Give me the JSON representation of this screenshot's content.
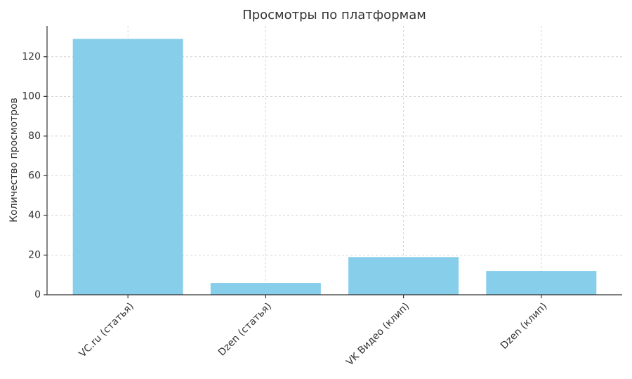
{
  "chart_data": {
    "type": "bar",
    "title": "Просмотры по платформам",
    "y_label": "Количество просмотров",
    "categories": [
      "VC.ru (статья)",
      "Dzen (статья)",
      "VK Видео (клип)",
      "Dzen (клип)"
    ],
    "values": [
      129,
      6,
      19,
      12
    ],
    "color": "#87ceeb",
    "ylim": [
      0,
      135.5
    ],
    "yticks": [
      0,
      20,
      40,
      60,
      80,
      100,
      120
    ],
    "grid": true
  }
}
